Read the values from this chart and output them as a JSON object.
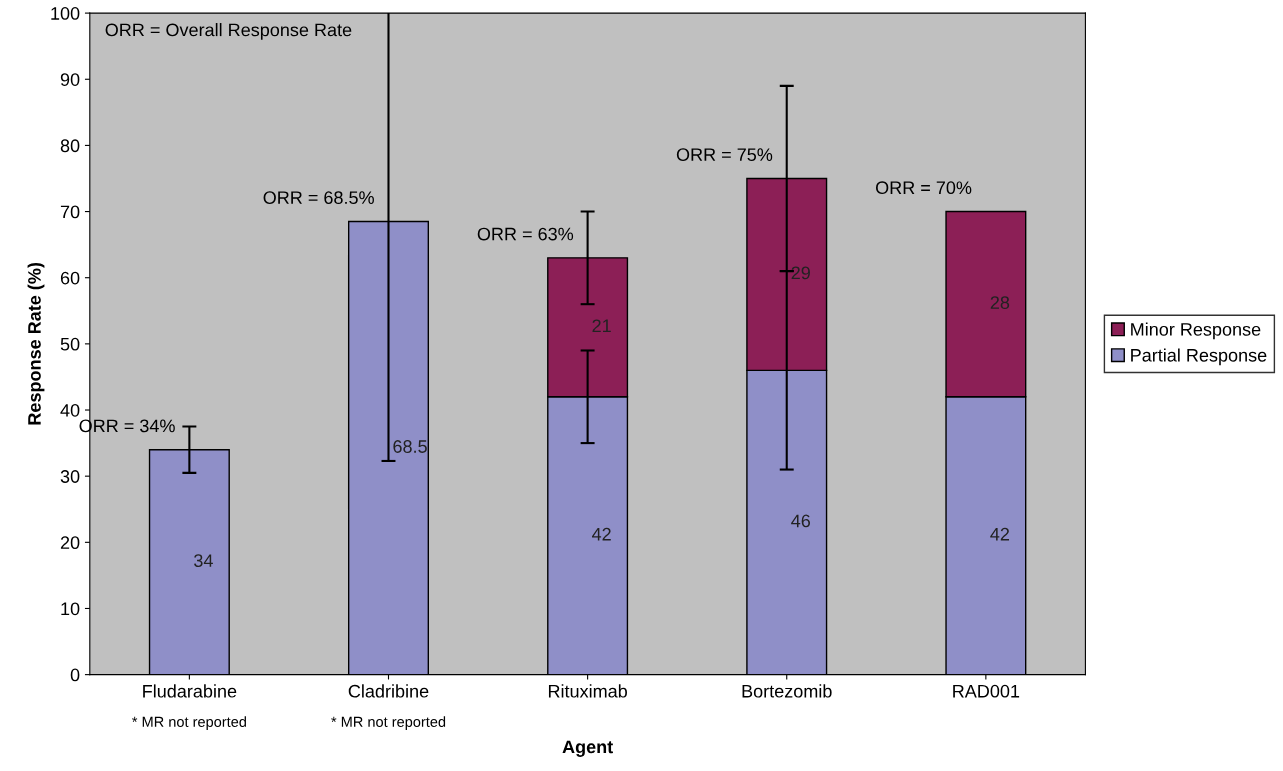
{
  "chart_data": {
    "type": "bar",
    "stacked": true,
    "xlabel": "Agent",
    "ylabel": "Response Rate (%)",
    "categories": [
      "Fludarabine",
      "Cladribine",
      "Rituximab",
      "Bortezomib",
      "RAD001"
    ],
    "series": [
      {
        "name": "Partial Response",
        "color": "#8f8fc8",
        "values": [
          34,
          68.5,
          42,
          46,
          42
        ],
        "value_labels": [
          "34",
          "68.5",
          "42",
          "46",
          "42"
        ],
        "errors": [
          [
            30.5,
            37.5
          ],
          [
            32.3,
            100
          ],
          [
            35,
            49
          ],
          [
            31,
            61
          ],
          null
        ]
      },
      {
        "name": "Minor Response",
        "color": "#8c1f56",
        "values": [
          null,
          null,
          21,
          29,
          28
        ],
        "value_labels": [
          null,
          null,
          "21",
          "29",
          "28"
        ],
        "errors": [
          null,
          null,
          [
            56,
            70
          ],
          [
            61,
            89
          ],
          null
        ]
      }
    ],
    "ylim": [
      0,
      100
    ],
    "yticks": [
      0,
      10,
      20,
      30,
      40,
      50,
      60,
      70,
      80,
      90,
      100
    ],
    "grid": false,
    "legend": "right",
    "totals": [
      "ORR = 34%",
      "ORR = 68.5%",
      "ORR = 63%",
      "ORR = 75%",
      "ORR = 70%"
    ],
    "annotations": [
      "ORR = Overall Response Rate",
      "* MR not reported",
      "* MR not reported"
    ]
  }
}
